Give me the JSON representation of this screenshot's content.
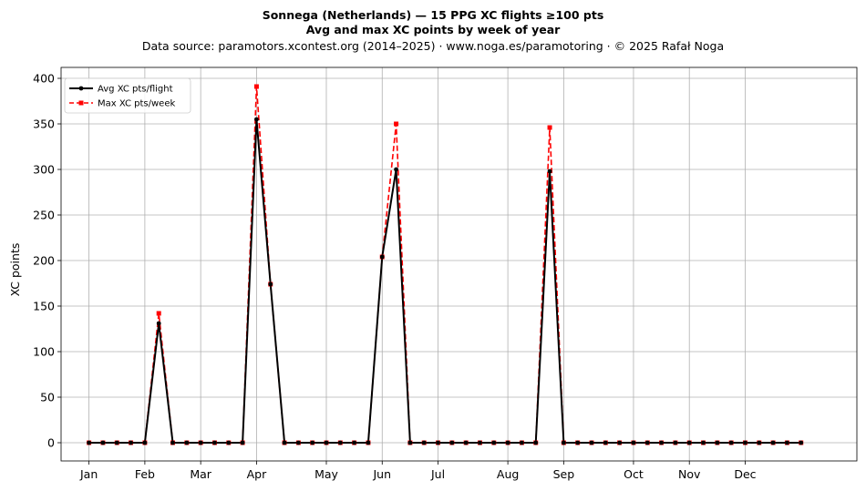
{
  "chart_data": {
    "type": "line",
    "title": "Sonnega (Netherlands)  —  15 PPG XC flights ≥100 pts",
    "title_line2": "Avg and max XC points by week of year",
    "subtitle": "Data source: paramotors.xcontest.org (2014–2025)  ·  www.noga.es/paramotoring  ·  © 2025 Rafał Noga",
    "ylabel": "XC points",
    "xlabel": "",
    "xlim": [
      -2,
      55
    ],
    "ylim": [
      -20,
      412
    ],
    "yticks": [
      0,
      50,
      100,
      150,
      200,
      250,
      300,
      350,
      400
    ],
    "xticks": [
      {
        "label": "Jan",
        "week": 0
      },
      {
        "label": "Feb",
        "week": 4
      },
      {
        "label": "Mar",
        "week": 8
      },
      {
        "label": "Apr",
        "week": 12
      },
      {
        "label": "May",
        "week": 17
      },
      {
        "label": "Jun",
        "week": 21
      },
      {
        "label": "Jul",
        "week": 25
      },
      {
        "label": "Aug",
        "week": 30
      },
      {
        "label": "Sep",
        "week": 34
      },
      {
        "label": "Oct",
        "week": 39
      },
      {
        "label": "Nov",
        "week": 43
      },
      {
        "label": "Dec",
        "week": 47
      }
    ],
    "grid": true,
    "legend_position": "upper-left",
    "x": [
      0,
      1,
      2,
      3,
      4,
      5,
      6,
      7,
      8,
      9,
      10,
      11,
      12,
      13,
      14,
      15,
      16,
      17,
      18,
      19,
      20,
      21,
      22,
      23,
      24,
      25,
      26,
      27,
      28,
      29,
      30,
      31,
      32,
      33,
      34,
      35,
      36,
      37,
      38,
      39,
      40,
      41,
      42,
      43,
      44,
      45,
      46,
      47,
      48,
      49,
      50,
      51
    ],
    "series": [
      {
        "name": "Avg XC pts/flight",
        "color": "#000000",
        "style": "solid-circle",
        "values": [
          0,
          0,
          0,
          0,
          0,
          131,
          0,
          0,
          0,
          0,
          0,
          0,
          355,
          174,
          0,
          0,
          0,
          0,
          0,
          0,
          0,
          204,
          300,
          0,
          0,
          0,
          0,
          0,
          0,
          0,
          0,
          0,
          0,
          298,
          0,
          0,
          0,
          0,
          0,
          0,
          0,
          0,
          0,
          0,
          0,
          0,
          0,
          0,
          0,
          0,
          0,
          0
        ]
      },
      {
        "name": "Max XC pts/week",
        "color": "#ff0000",
        "style": "dashed-square",
        "values": [
          0,
          0,
          0,
          0,
          0,
          142,
          0,
          0,
          0,
          0,
          0,
          0,
          391,
          174,
          0,
          0,
          0,
          0,
          0,
          0,
          0,
          204,
          350,
          0,
          0,
          0,
          0,
          0,
          0,
          0,
          0,
          0,
          0,
          346,
          0,
          0,
          0,
          0,
          0,
          0,
          0,
          0,
          0,
          0,
          0,
          0,
          0,
          0,
          0,
          0,
          0,
          0
        ]
      }
    ]
  }
}
